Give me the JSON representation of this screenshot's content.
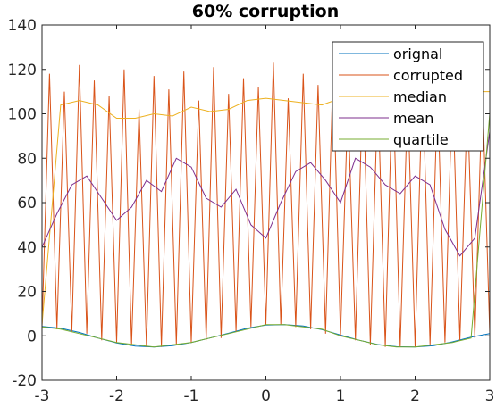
{
  "chart_data": {
    "type": "line",
    "title": "60% corruption",
    "xlabel": "",
    "ylabel": "",
    "xlim": [
      -3,
      3
    ],
    "ylim": [
      -20,
      140
    ],
    "xticks": [
      "-3",
      "-2",
      "-1",
      "0",
      "1",
      "2",
      "3"
    ],
    "yticks": [
      "-20",
      "0",
      "20",
      "40",
      "60",
      "80",
      "100",
      "120",
      "140"
    ],
    "grid": false,
    "legend_position": "top-right",
    "series": [
      {
        "name": "orignal",
        "color": "#0072BD",
        "x": [
          -3,
          -2.75,
          -2.5,
          -2.25,
          -2,
          -1.75,
          -1.5,
          -1.25,
          -1,
          -0.75,
          -0.5,
          -0.25,
          0,
          0.25,
          0.5,
          0.75,
          1,
          1.25,
          1.5,
          1.75,
          2,
          2.25,
          2.5,
          2.75,
          3
        ],
        "y": [
          4.2,
          3.4,
          1.5,
          -1.0,
          -3.2,
          -4.6,
          -5.0,
          -4.4,
          -3.0,
          -1.0,
          1.2,
          3.4,
          4.8,
          5.0,
          4.4,
          2.8,
          0.4,
          -2.0,
          -3.9,
          -4.9,
          -5.0,
          -4.4,
          -2.7,
          -0.6,
          1.0
        ]
      },
      {
        "name": "corrupted",
        "color": "#D95319",
        "x": [
          -3,
          -2.9,
          -2.8,
          -2.7,
          -2.6,
          -2.5,
          -2.4,
          -2.3,
          -2.2,
          -2.1,
          -2,
          -1.9,
          -1.8,
          -1.7,
          -1.6,
          -1.5,
          -1.4,
          -1.3,
          -1.2,
          -1.1,
          -1,
          -0.9,
          -0.8,
          -0.7,
          -0.6,
          -0.5,
          -0.4,
          -0.3,
          -0.2,
          -0.1,
          0,
          0.1,
          0.2,
          0.3,
          0.4,
          0.5,
          0.6,
          0.7,
          0.8,
          0.9,
          1,
          1.1,
          1.2,
          1.3,
          1.4,
          1.5,
          1.6,
          1.7,
          1.8,
          1.9,
          2,
          2.1,
          2.2,
          2.3,
          2.4,
          2.5,
          2.6,
          2.7,
          2.8,
          2.9,
          3
        ],
        "y": [
          4,
          118,
          3,
          110,
          2,
          122,
          1,
          115,
          -2,
          108,
          -3,
          120,
          -4,
          102,
          -5,
          117,
          -5,
          111,
          -4,
          119,
          -3,
          106,
          -2,
          121,
          -1,
          109,
          2,
          116,
          4,
          112,
          5,
          123,
          5,
          107,
          4,
          118,
          3,
          113,
          1,
          120,
          0,
          105,
          -2,
          116,
          -4,
          111,
          -5,
          119,
          -5,
          108,
          -5,
          117,
          -4,
          110,
          -3,
          114,
          -2,
          106,
          -1,
          112,
          1
        ]
      },
      {
        "name": "median",
        "color": "#EDB120",
        "x": [
          -3,
          -2.75,
          -2.5,
          -2.25,
          -2,
          -1.75,
          -1.5,
          -1.25,
          -1,
          -0.75,
          -0.5,
          -0.25,
          0,
          0.25,
          0.5,
          0.75,
          1,
          1.25,
          1.5,
          1.75,
          2,
          2.25,
          2.5,
          2.75,
          3
        ],
        "y": [
          5,
          104,
          106,
          104,
          98,
          98,
          100,
          99,
          103,
          101,
          102,
          106,
          107,
          106,
          105,
          104,
          107,
          108,
          105,
          103,
          101,
          103,
          106,
          110,
          110
        ]
      },
      {
        "name": "mean",
        "color": "#7E2F8E",
        "x": [
          -3,
          -2.8,
          -2.6,
          -2.4,
          -2.2,
          -2.0,
          -1.8,
          -1.6,
          -1.4,
          -1.2,
          -1.0,
          -0.8,
          -0.6,
          -0.4,
          -0.2,
          0,
          0.2,
          0.4,
          0.6,
          0.8,
          1.0,
          1.2,
          1.4,
          1.6,
          1.8,
          2.0,
          2.2,
          2.4,
          2.6,
          2.8,
          3.0
        ],
        "y": [
          40,
          55,
          68,
          72,
          62,
          52,
          58,
          70,
          65,
          80,
          76,
          62,
          58,
          66,
          50,
          44,
          60,
          74,
          78,
          70,
          60,
          80,
          76,
          68,
          64,
          72,
          68,
          48,
          36,
          44,
          92
        ]
      },
      {
        "name": "quartile",
        "color": "#77AC30",
        "x": [
          -3,
          -2.75,
          -2.5,
          -2.25,
          -2,
          -1.75,
          -1.5,
          -1.25,
          -1,
          -0.75,
          -0.5,
          -0.25,
          0,
          0.25,
          0.5,
          0.75,
          1,
          1.25,
          1.5,
          1.75,
          2,
          2.25,
          2.5,
          2.75,
          3
        ],
        "y": [
          4,
          3,
          1,
          -1,
          -3,
          -4,
          -5,
          -4,
          -3,
          -1,
          1,
          3,
          5,
          5,
          4,
          3,
          0,
          -2,
          -4,
          -5,
          -5,
          -4,
          -3,
          -1,
          100
        ]
      }
    ]
  }
}
